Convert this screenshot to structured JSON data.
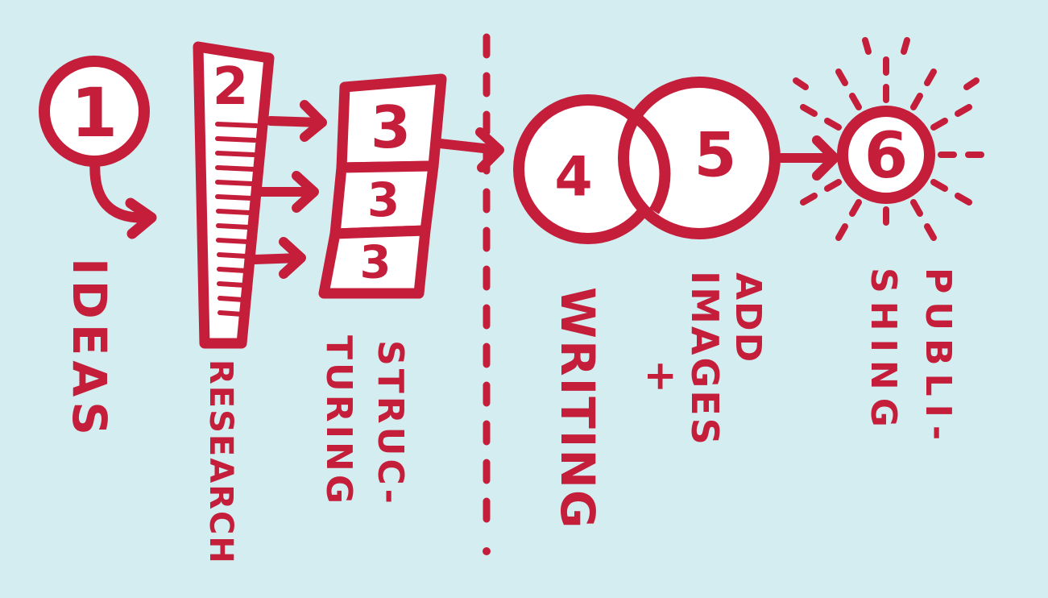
{
  "colors": {
    "background": "#D4EDF1",
    "ink": "#C41E3A",
    "fill": "#FFFFFF"
  },
  "steps": [
    {
      "number": "1",
      "label": "IDEAS"
    },
    {
      "number": "2",
      "label": "RESEARCH"
    },
    {
      "number": "3",
      "label_lines": [
        "STRUC-",
        "TURING"
      ],
      "sub_numbers": [
        "3",
        "3",
        "3"
      ]
    },
    {
      "number": "4",
      "label": "WRITING"
    },
    {
      "number": "5",
      "label_lines": [
        "ADD",
        "IMAGES",
        "+"
      ]
    },
    {
      "number": "6",
      "label_lines": [
        "PUBLI-",
        "SHING"
      ]
    }
  ]
}
